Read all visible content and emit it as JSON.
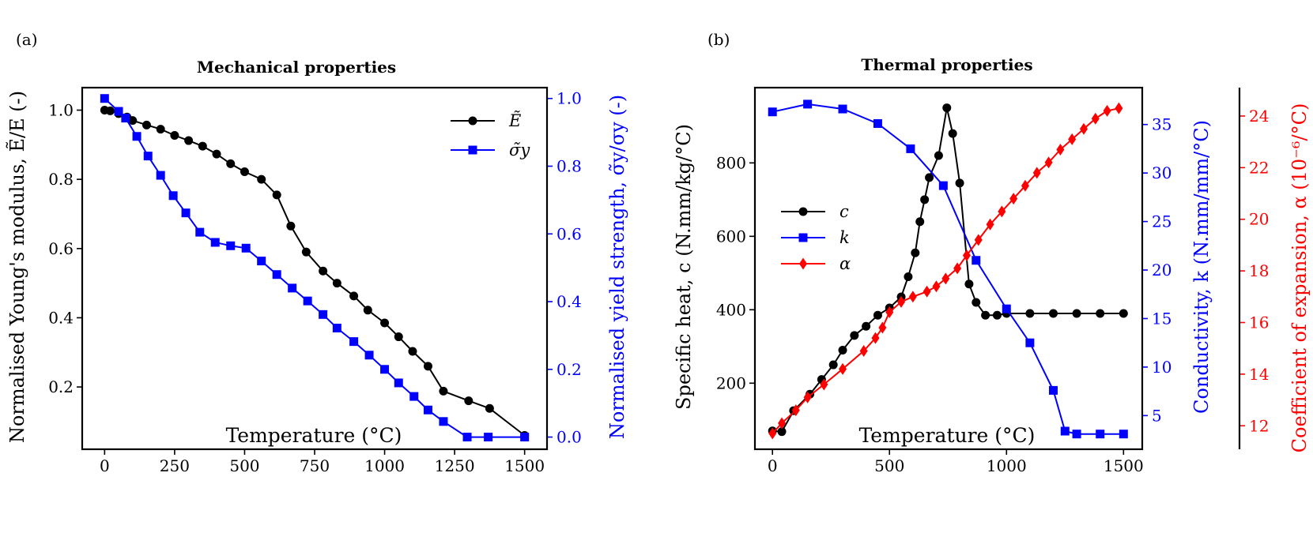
{
  "chart_data": [
    {
      "panel": "(a)",
      "type": "line",
      "title": "Mechanical properties",
      "xlabel": "Temperature (°C)",
      "ylabel": "Normalised Young's modulus, Ẽ/E (-)",
      "y2label": "Normalised yield strength, σ̃y/σy (-)",
      "xlim": [
        -80,
        1580
      ],
      "ylim": [
        0.02,
        1.065
      ],
      "y2lim": [
        -0.036,
        1.032
      ],
      "xticks": [
        "0",
        "250",
        "500",
        "750",
        "1000",
        "1250",
        "1500"
      ],
      "yticks": [
        "0.2",
        "0.4",
        "0.6",
        "0.8",
        "1.0"
      ],
      "y2ticks": [
        "0.0",
        "0.2",
        "0.4",
        "0.6",
        "0.8",
        "1.0"
      ],
      "legend": "top-right",
      "series": [
        {
          "name": "Ẽ",
          "color": "#000000",
          "marker": "circle",
          "axis": "left",
          "x": [
            0,
            20,
            50,
            80,
            100,
            150,
            200,
            250,
            300,
            350,
            400,
            450,
            500,
            560,
            615,
            665,
            720,
            780,
            830,
            890,
            940,
            1000,
            1050,
            1100,
            1155,
            1210,
            1300,
            1375,
            1500
          ],
          "y": [
            1.0,
            0.998,
            0.99,
            0.98,
            0.97,
            0.957,
            0.945,
            0.927,
            0.912,
            0.896,
            0.873,
            0.845,
            0.822,
            0.8,
            0.755,
            0.665,
            0.59,
            0.535,
            0.5,
            0.463,
            0.422,
            0.385,
            0.345,
            0.303,
            0.26,
            0.188,
            0.16,
            0.138,
            0.06
          ]
        },
        {
          "name": "σ̃y",
          "color": "#0000ff",
          "marker": "square",
          "axis": "right",
          "x": [
            0,
            50,
            75,
            115,
            155,
            200,
            245,
            290,
            340,
            395,
            450,
            505,
            560,
            615,
            670,
            725,
            780,
            830,
            890,
            945,
            1000,
            1050,
            1105,
            1155,
            1210,
            1295,
            1370,
            1500
          ],
          "y": [
            1.0,
            0.962,
            0.942,
            0.888,
            0.83,
            0.773,
            0.713,
            0.662,
            0.605,
            0.575,
            0.565,
            0.558,
            0.52,
            0.48,
            0.44,
            0.402,
            0.362,
            0.322,
            0.282,
            0.242,
            0.2,
            0.16,
            0.12,
            0.08,
            0.046,
            0.0,
            0.0,
            0.0
          ]
        }
      ]
    },
    {
      "panel": "(b)",
      "type": "line",
      "title": "Thermal properties",
      "xlabel": "Temperature (°C)",
      "ylabel": "Specific heat, c (N.mm/kg/°C)",
      "y2label": "Conductivity, k (N.mm/mm/°C)",
      "y3label": "Coefficient of expansion, α (10⁻⁶/°C)",
      "xlim": [
        -75,
        1580
      ],
      "ylim": [
        20,
        1005
      ],
      "y2lim": [
        1.53,
        38.8
      ],
      "y3lim": [
        11.09,
        25.1
      ],
      "xticks": [
        "0",
        "500",
        "1000",
        "1500"
      ],
      "yticks": [
        "200",
        "400",
        "600",
        "800"
      ],
      "y2ticks": [
        "5",
        "10",
        "15",
        "20",
        "25",
        "30",
        "35"
      ],
      "y3ticks": [
        "12",
        "14",
        "16",
        "18",
        "20",
        "22",
        "24"
      ],
      "legend": "center-left",
      "series": [
        {
          "name": "c",
          "color": "#000000",
          "marker": "circle",
          "axis": "left",
          "x": [
            0,
            40,
            90,
            160,
            210,
            260,
            300,
            350,
            400,
            450,
            500,
            550,
            580,
            610,
            630,
            650,
            670,
            710,
            745,
            770,
            800,
            840,
            870,
            910,
            960,
            1000,
            1100,
            1200,
            1300,
            1400,
            1500
          ],
          "y": [
            70,
            68,
            125,
            170,
            210,
            250,
            290,
            330,
            355,
            385,
            405,
            435,
            490,
            555,
            640,
            700,
            760,
            820,
            950,
            880,
            745,
            470,
            420,
            385,
            385,
            390,
            390,
            390,
            390,
            390,
            390
          ]
        },
        {
          "name": "k",
          "color": "#0000ff",
          "marker": "square",
          "axis": "right",
          "x": [
            0,
            150,
            300,
            450,
            590,
            730,
            870,
            1000,
            1100,
            1200,
            1250,
            1300,
            1400,
            1500
          ],
          "y": [
            36.3,
            37.1,
            36.6,
            35.1,
            32.5,
            28.7,
            21.0,
            16.0,
            12.5,
            7.6,
            3.4,
            3.1,
            3.1,
            3.1
          ]
        },
        {
          "name": "α",
          "color": "#ff0000",
          "marker": "diamond",
          "axis": "right2",
          "x": [
            0,
            40,
            100,
            150,
            220,
            300,
            390,
            440,
            470,
            500,
            550,
            600,
            660,
            700,
            740,
            790,
            830,
            880,
            930,
            980,
            1030,
            1080,
            1130,
            1180,
            1230,
            1280,
            1330,
            1380,
            1430,
            1480
          ],
          "y": [
            11.7,
            12.1,
            12.6,
            13.1,
            13.6,
            14.2,
            14.9,
            15.4,
            15.8,
            16.4,
            16.8,
            17.0,
            17.2,
            17.4,
            17.7,
            18.1,
            18.6,
            19.2,
            19.8,
            20.3,
            20.8,
            21.3,
            21.8,
            22.2,
            22.7,
            23.1,
            23.5,
            23.9,
            24.2,
            24.3
          ]
        }
      ]
    }
  ]
}
